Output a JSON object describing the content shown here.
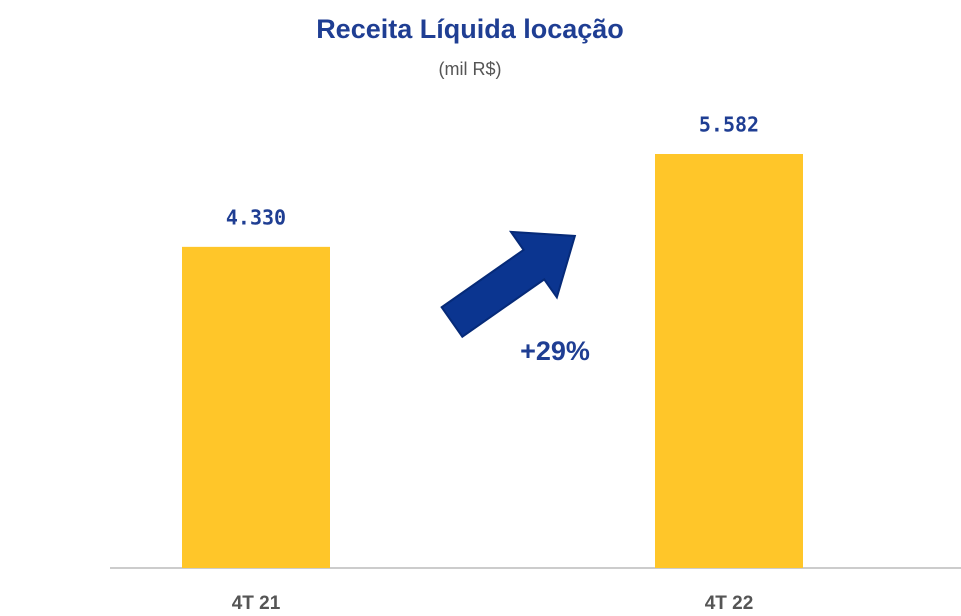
{
  "chart_data": {
    "type": "bar",
    "title": "Receita Líquida locação",
    "subtitle": "(mil R$)",
    "categories": [
      "4T 21",
      "4T 22"
    ],
    "values": [
      4330,
      5582
    ],
    "value_labels": [
      "4.330",
      "5.582"
    ],
    "color": "#ffc629",
    "annotation": "+29%"
  }
}
